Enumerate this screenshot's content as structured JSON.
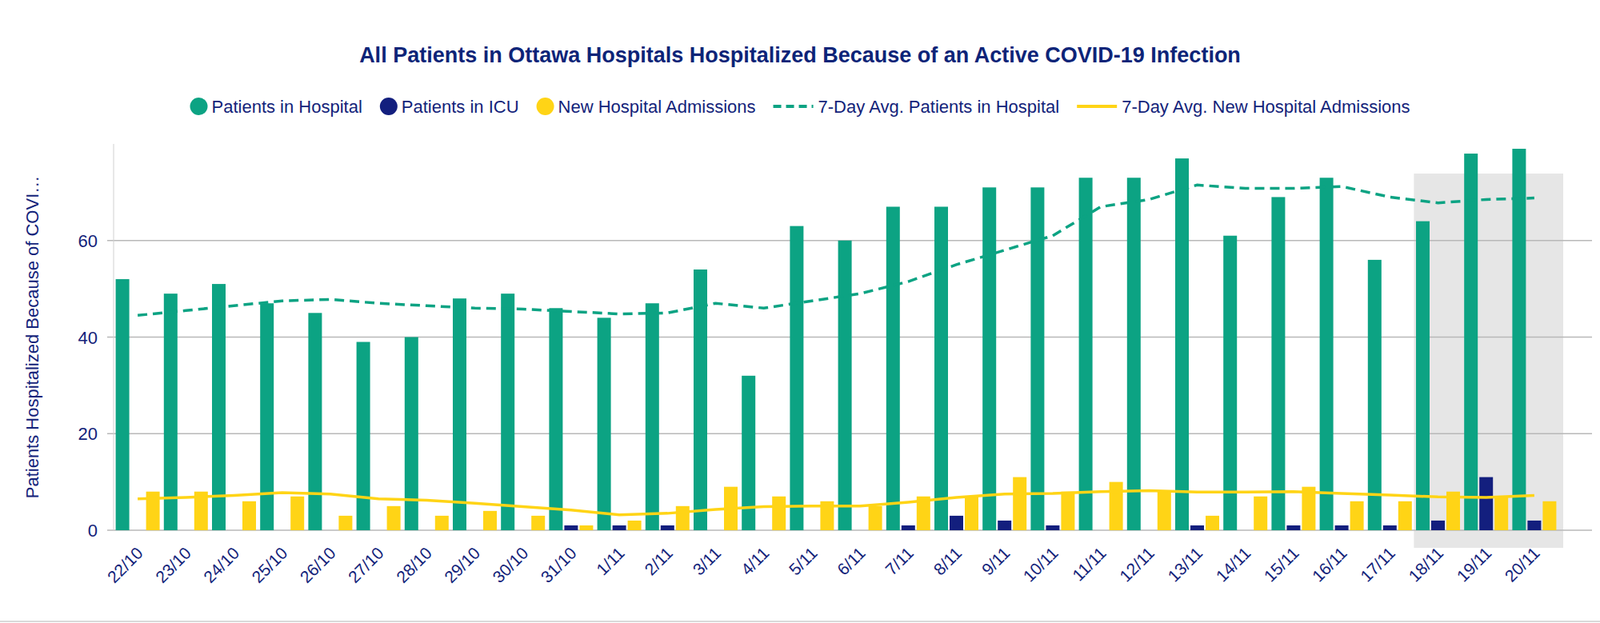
{
  "chart_data": {
    "type": "bar",
    "title": "All Patients in Ottawa Hospitals Hospitalized Because of an Active COVID-19 Infection",
    "y_label": "Patients Hospitalized Because of COVI…",
    "categories": [
      "22/10",
      "23/10",
      "24/10",
      "25/10",
      "26/10",
      "27/10",
      "28/10",
      "29/10",
      "30/10",
      "31/10",
      "1/11",
      "2/11",
      "3/11",
      "4/11",
      "5/11",
      "6/11",
      "7/11",
      "8/11",
      "9/11",
      "10/11",
      "11/11",
      "12/11",
      "13/11",
      "14/11",
      "15/11",
      "16/11",
      "17/11",
      "18/11",
      "19/11",
      "20/11"
    ],
    "series": [
      {
        "name": "Patients in Hospital",
        "type": "bar",
        "color": "#0ca383",
        "marker": "circle",
        "values": [
          52,
          49,
          51,
          47,
          45,
          39,
          40,
          48,
          49,
          46,
          44,
          47,
          54,
          32,
          63,
          60,
          67,
          67,
          71,
          71,
          73,
          73,
          77,
          61,
          69,
          73,
          56,
          64,
          78,
          79
        ]
      },
      {
        "name": "Patients in ICU",
        "type": "bar",
        "color": "#131f7e",
        "marker": "circle",
        "values": [
          0,
          0,
          0,
          0,
          0,
          0,
          0,
          0,
          0,
          1,
          1,
          1,
          0,
          0,
          0,
          0,
          1,
          3,
          2,
          1,
          0,
          0,
          1,
          0,
          1,
          1,
          1,
          2,
          11,
          2
        ]
      },
      {
        "name": "New Hospital Admissions",
        "type": "bar",
        "color": "#ffd416",
        "marker": "circle",
        "values": [
          8,
          8,
          6,
          7,
          3,
          5,
          3,
          4,
          3,
          1,
          2,
          5,
          9,
          7,
          6,
          5,
          7,
          7,
          11,
          8,
          10,
          8,
          3,
          7,
          9,
          6,
          6,
          8,
          7,
          6
        ]
      },
      {
        "name": "7-Day Avg. Patients in Hospital",
        "type": "line",
        "line_style": "dashed",
        "color": "#0ca383",
        "values": [
          44.5,
          45.5,
          46.5,
          47.5,
          47.8,
          47,
          46.5,
          46,
          45.8,
          45.3,
          44.8,
          45,
          47,
          46,
          47.5,
          49,
          51.5,
          55,
          58,
          61,
          67,
          68.5,
          71.5,
          70.8,
          70.8,
          71.2,
          69,
          67.8,
          68.5,
          68.8
        ]
      },
      {
        "name": "7-Day Avg. New Hospital Admissions",
        "type": "line",
        "line_style": "solid",
        "color": "#ffd416",
        "values": [
          6.5,
          6.8,
          7.2,
          7.8,
          7.5,
          6.5,
          6.2,
          5.6,
          4.9,
          4.2,
          3.2,
          3.5,
          4.3,
          4.9,
          5,
          5,
          5.8,
          6.8,
          7.5,
          7.6,
          8,
          8.2,
          7.9,
          7.9,
          8,
          7.6,
          7.3,
          6.9,
          6.8,
          7.2
        ]
      }
    ],
    "ylim": [
      0,
      80
    ],
    "yticks": [
      0,
      20,
      40,
      60
    ],
    "grid": true,
    "legend": "top"
  }
}
